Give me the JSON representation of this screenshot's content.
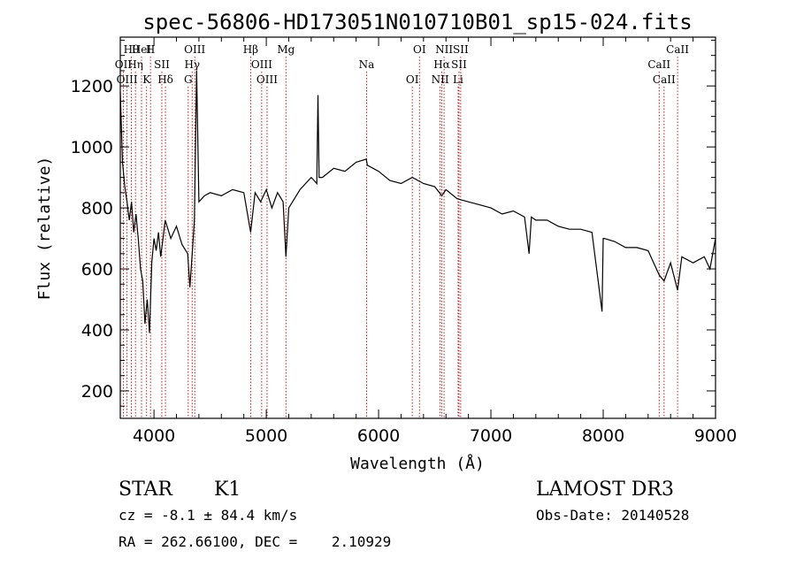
{
  "chart_data": {
    "type": "line",
    "title": "spec-56806-HD173051N010710B01_sp15-024.fits",
    "xlabel": "Wavelength (Å)",
    "ylabel": "Flux (relative)",
    "xlim": [
      3700,
      9000
    ],
    "ylim": [
      110,
      1360
    ],
    "x_ticks": [
      4000,
      5000,
      6000,
      7000,
      8000,
      9000
    ],
    "y_ticks": [
      200,
      400,
      600,
      800,
      1000,
      1200
    ],
    "grid": false,
    "series": [
      {
        "x": [
          3700,
          3720,
          3740,
          3760,
          3780,
          3800,
          3820,
          3840,
          3860,
          3880,
          3900,
          3920,
          3940,
          3960,
          3980,
          4000,
          4020,
          4040,
          4060,
          4080,
          4100,
          4150,
          4200,
          4250,
          4300,
          4320,
          4340,
          4360,
          4380,
          4400,
          4450,
          4500,
          4600,
          4700,
          4800,
          4861,
          4900,
          4950,
          5000,
          5050,
          5100,
          5150,
          5175,
          5200,
          5300,
          5400,
          5450,
          5460,
          5470,
          5500,
          5600,
          5700,
          5800,
          5890,
          5900,
          6000,
          6100,
          6200,
          6300,
          6400,
          6500,
          6563,
          6600,
          6700,
          6800,
          6900,
          7000,
          7100,
          7200,
          7300,
          7340,
          7360,
          7400,
          7500,
          7600,
          7700,
          7800,
          7900,
          7990,
          8000,
          8010,
          8100,
          8200,
          8300,
          8400,
          8498,
          8542,
          8600,
          8662,
          8700,
          8800,
          8900,
          8950,
          9000
        ],
        "y": [
          1180,
          950,
          870,
          820,
          760,
          820,
          720,
          780,
          700,
          600,
          560,
          420,
          500,
          390,
          620,
          700,
          660,
          720,
          640,
          700,
          760,
          700,
          740,
          680,
          650,
          540,
          650,
          760,
          1250,
          820,
          840,
          850,
          840,
          860,
          850,
          720,
          850,
          820,
          860,
          800,
          850,
          820,
          640,
          800,
          860,
          900,
          880,
          1170,
          900,
          900,
          930,
          920,
          950,
          960,
          940,
          920,
          890,
          880,
          900,
          880,
          870,
          840,
          860,
          830,
          820,
          810,
          800,
          780,
          790,
          770,
          650,
          770,
          760,
          760,
          740,
          730,
          730,
          720,
          460,
          700,
          700,
          690,
          670,
          670,
          660,
          580,
          560,
          620,
          530,
          640,
          620,
          640,
          600,
          700
        ]
      }
    ],
    "spectral_lines": [
      {
        "label": "Hθ",
        "wavelength": 3798
      },
      {
        "label": "OII",
        "wavelength": 3727
      },
      {
        "label": "OIII",
        "wavelength": 3760
      },
      {
        "label": "HeI",
        "wavelength": 3889
      },
      {
        "label": "Hη",
        "wavelength": 3835
      },
      {
        "label": "K",
        "wavelength": 3934
      },
      {
        "label": "H",
        "wavelength": 3969
      },
      {
        "label": "SII",
        "wavelength": 4070
      },
      {
        "label": "Hδ",
        "wavelength": 4102
      },
      {
        "label": "OIII",
        "wavelength": 4363
      },
      {
        "label": "Hγ",
        "wavelength": 4340
      },
      {
        "label": "G",
        "wavelength": 4305
      },
      {
        "label": "Hβ",
        "wavelength": 4861
      },
      {
        "label": "OIII",
        "wavelength": 4959
      },
      {
        "label": "OIII",
        "wavelength": 5007
      },
      {
        "label": "Mg",
        "wavelength": 5175
      },
      {
        "label": "Na",
        "wavelength": 5893
      },
      {
        "label": "OI",
        "wavelength": 6300
      },
      {
        "label": "OI",
        "wavelength": 6364
      },
      {
        "label": "Hα",
        "wavelength": 6563
      },
      {
        "label": "NII",
        "wavelength": 6548
      },
      {
        "label": "NII",
        "wavelength": 6583
      },
      {
        "label": "SII",
        "wavelength": 6716
      },
      {
        "label": "Li",
        "wavelength": 6708
      },
      {
        "label": "SII",
        "wavelength": 6731
      },
      {
        "label": "CaII",
        "wavelength": 8498
      },
      {
        "label": "CaII",
        "wavelength": 8542
      },
      {
        "label": "CaII",
        "wavelength": 8662
      }
    ]
  },
  "info": {
    "class": "STAR",
    "subclass": "K1",
    "survey": "LAMOST DR3",
    "cz": "cz = -8.1 ± 84.4 km/s",
    "obs_date": "Obs-Date: 20140528",
    "coords": "RA = 262.66100, DEC =    2.10929"
  },
  "colors": {
    "spectrum": "#000000",
    "line_marker": "#cc0000"
  }
}
